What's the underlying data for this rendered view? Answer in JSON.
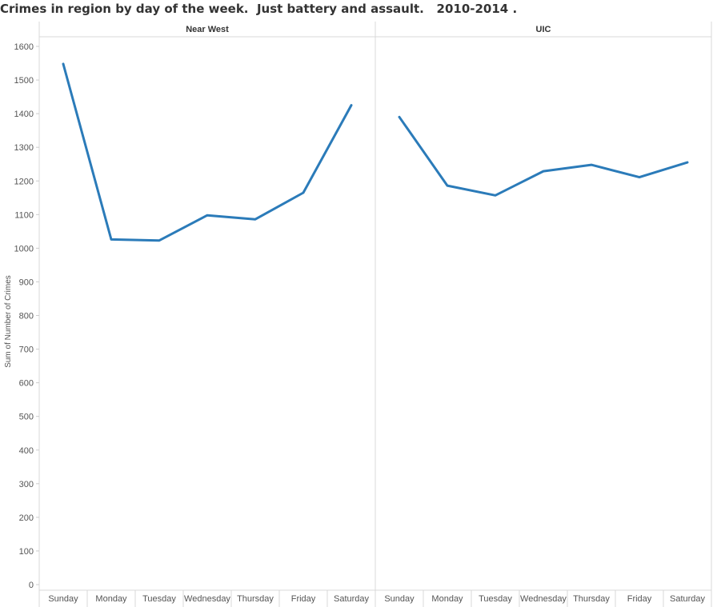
{
  "chart_data": {
    "type": "line",
    "title": "Crimes in region by day of the week.  Just battery and assault.   2010-2014 .",
    "ylabel": "Sum of Number of Crimes",
    "xlabel": "",
    "ylim": [
      0,
      1650
    ],
    "yticks": [
      0,
      100,
      200,
      300,
      400,
      500,
      600,
      700,
      800,
      900,
      1000,
      1100,
      1200,
      1300,
      1400,
      1500,
      1600
    ],
    "categories": [
      "Sunday",
      "Monday",
      "Tuesday",
      "Wednesday",
      "Thursday",
      "Friday",
      "Saturday"
    ],
    "grid": false,
    "line_color": "#2b7bb9",
    "panels": [
      {
        "name": "Near West",
        "values": [
          1548,
          1026,
          1023,
          1098,
          1086,
          1165,
          1425
        ]
      },
      {
        "name": "UIC",
        "values": [
          1390,
          1186,
          1157,
          1229,
          1248,
          1211,
          1255
        ]
      }
    ]
  }
}
